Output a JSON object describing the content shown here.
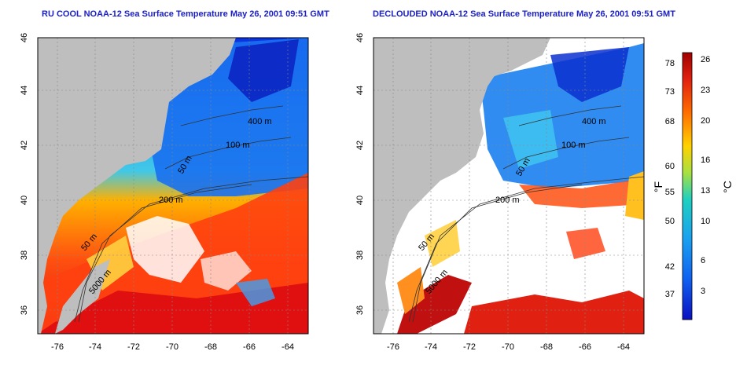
{
  "left_panel": {
    "title": "RU COOL NOAA-12 Sea Surface Temperature May 26, 2001 09:51 GMT",
    "lon_ticks": [
      "-76",
      "-74",
      "-72",
      "-70",
      "-68",
      "-66",
      "-64"
    ],
    "lat_ticks": [
      "36",
      "38",
      "40",
      "42",
      "44",
      "46"
    ],
    "contour_labels": [
      "50 m",
      "100 m",
      "400 m",
      "200 m",
      "50 m",
      "5000 m"
    ]
  },
  "right_panel": {
    "title": "DECLOUDED NOAA-12 Sea Surface Temperature May 26, 2001 09:51 GMT",
    "lon_ticks": [
      "-76",
      "-74",
      "-72",
      "-70",
      "-68",
      "-66",
      "-64"
    ],
    "lat_ticks": [
      "36",
      "38",
      "40",
      "42",
      "44",
      "46"
    ],
    "contour_labels": [
      "400 m",
      "100 m",
      "50 m",
      "200 m",
      "50 m",
      "5000 m"
    ]
  },
  "colorbar": {
    "fahrenheit_label": "°F",
    "celsius_label": "°C",
    "fahrenheit_ticks": [
      "78",
      "73",
      "68",
      "60",
      "55",
      "50",
      "42",
      "37"
    ],
    "celsius_ticks": [
      "26",
      "23",
      "20",
      "16",
      "13",
      "10",
      "6",
      "3"
    ],
    "colors": [
      "#a00000",
      "#e02010",
      "#ff6a00",
      "#ffd200",
      "#a8e040",
      "#20d0c0",
      "#1aa0f0",
      "#1060f0",
      "#0a10c0"
    ]
  },
  "colors": {
    "land": "#bebebe",
    "cloud": "#ffffff",
    "title": "#1a20c8"
  }
}
